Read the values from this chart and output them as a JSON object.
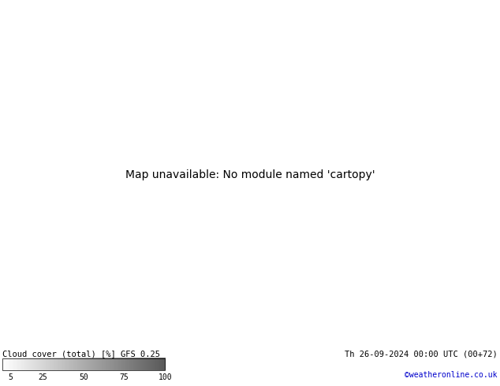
{
  "title_left": "Cloud cover (total) [%] GFS 0.25",
  "title_right": "Th 26-09-2024 00:00 UTC (00+72)",
  "watermark": "©weatheronline.co.uk",
  "colorbar_ticks": [
    5,
    25,
    50,
    75,
    100
  ],
  "bg_color": "#ffffff",
  "text_color": "#000000",
  "watermark_color": "#0000cc",
  "figsize": [
    6.34,
    4.9
  ],
  "dpi": 100,
  "map_extent": [
    -2,
    35,
    53,
    73
  ],
  "proj_lon": 15,
  "proj_lat": 63
}
